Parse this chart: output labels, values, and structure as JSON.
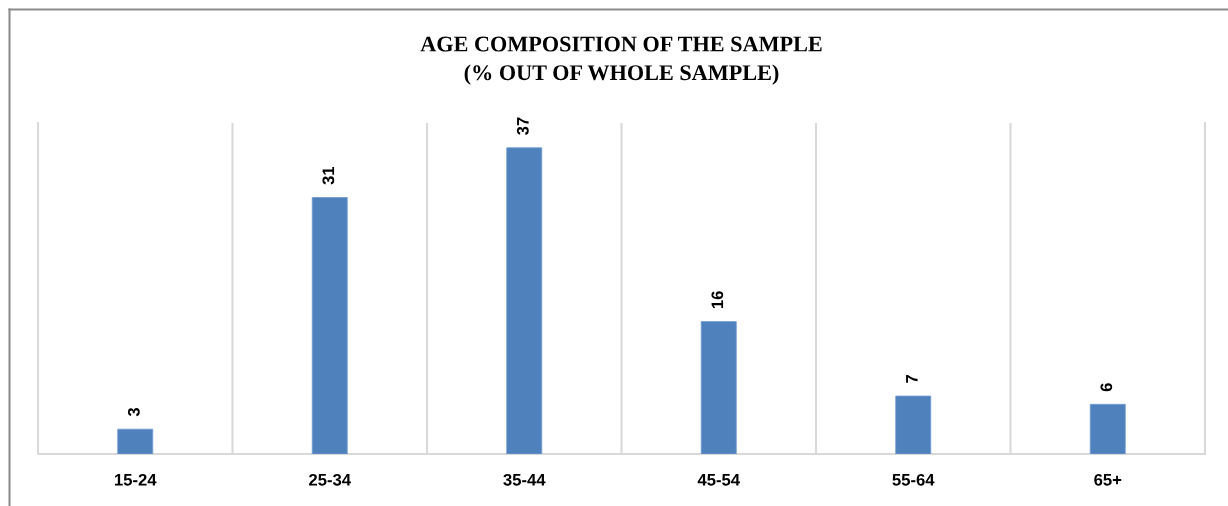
{
  "chart_data": {
    "type": "bar",
    "title": "AGE COMPOSITION OF THE SAMPLE\n(% OUT OF WHOLE SAMPLE)",
    "categories": [
      "15-24",
      "25-34",
      "35-44",
      "45-54",
      "55-64",
      "65+"
    ],
    "values": [
      3,
      31,
      37,
      16,
      7,
      6
    ],
    "color": "#4f81bd",
    "ylim": [
      0,
      40
    ],
    "data_labels": true,
    "grid": "x",
    "legend": false
  }
}
